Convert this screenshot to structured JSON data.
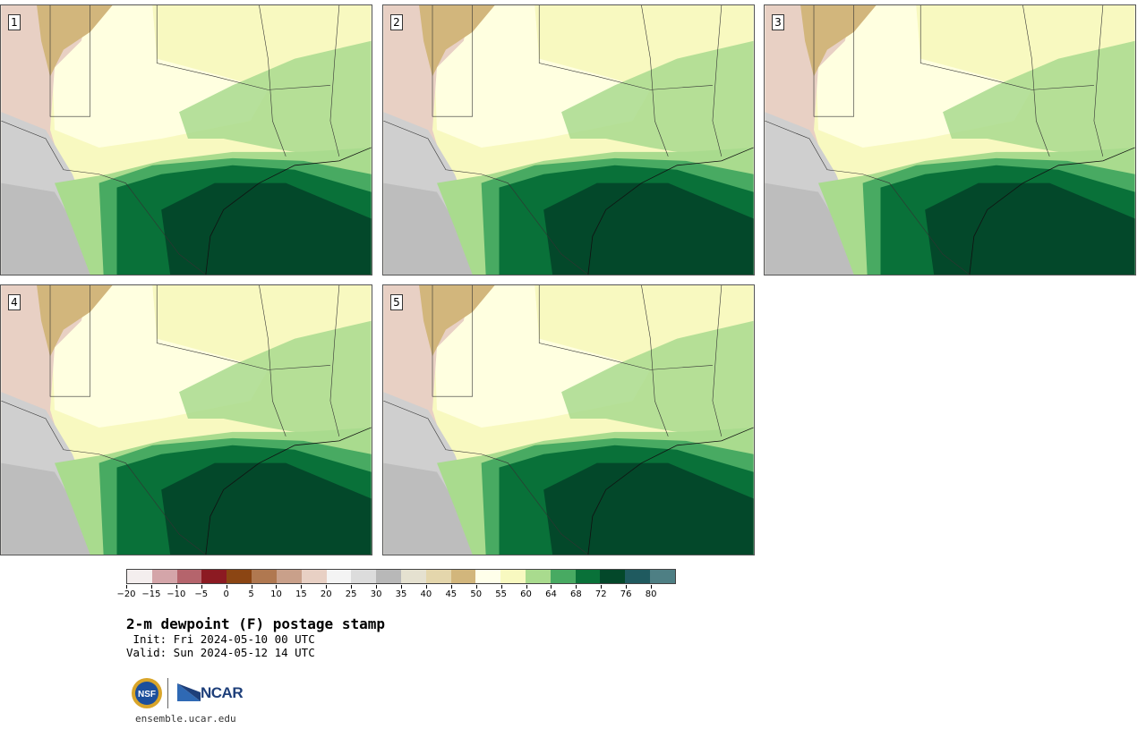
{
  "panels": [
    {
      "label": "1"
    },
    {
      "label": "2"
    },
    {
      "label": "3"
    },
    {
      "label": "4"
    },
    {
      "label": "5"
    }
  ],
  "colorbar": {
    "colors": [
      "#f4eeee",
      "#d4a5a9",
      "#b5646c",
      "#8c1a22",
      "#8b4513",
      "#b07850",
      "#c9a08a",
      "#e8d0c4",
      "#f4f4f4",
      "#dcdcdc",
      "#b8b8b8",
      "#e5e1d0",
      "#e4d6ac",
      "#d2b67c",
      "#ffffea",
      "#f8f9c0",
      "#a9db8e",
      "#48aa62",
      "#097139",
      "#03482a",
      "#1f5a5f",
      "#4e7f84"
    ],
    "ticks": [
      "−20",
      "−15",
      "−10",
      "−5",
      "0",
      "5",
      "10",
      "15",
      "20",
      "25",
      "30",
      "35",
      "40",
      "45",
      "50",
      "55",
      "60",
      "64",
      "68",
      "72",
      "76",
      "80"
    ]
  },
  "title": "2-m dewpoint (F) postage stamp",
  "init": " Init: Fri 2024-05-10 00 UTC",
  "valid": "Valid: Sun 2024-05-12 14 UTC",
  "logos": {
    "nsf": "NSF",
    "ncar": "NCAR"
  },
  "site": "ensemble.ucar.edu"
}
